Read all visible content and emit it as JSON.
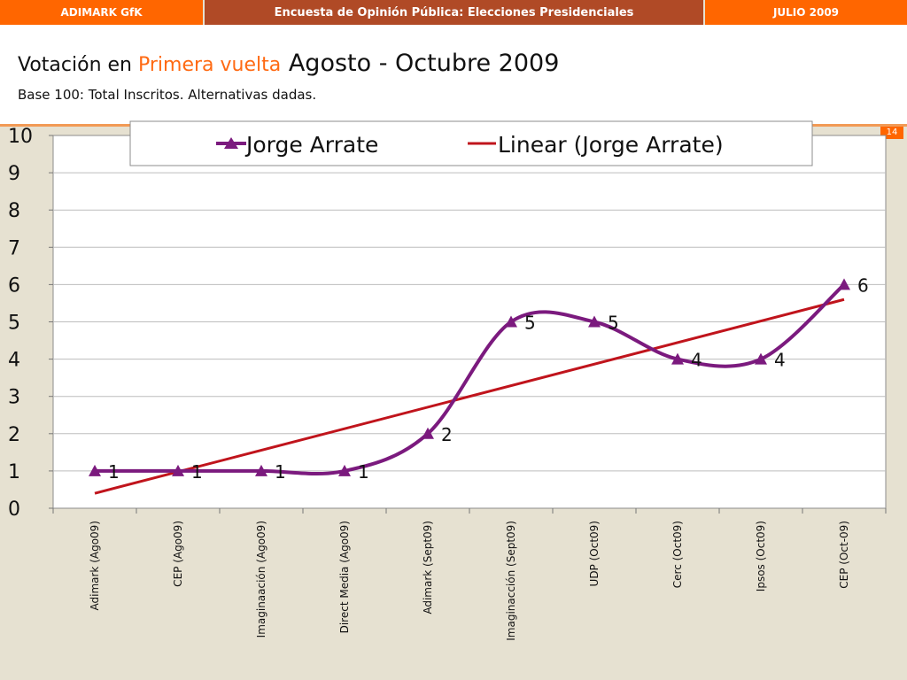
{
  "header": {
    "left": "ADIMARK GfK",
    "center": "Encuesta de Opinión Pública: Elecciones Presidenciales",
    "right": "JULIO 2009"
  },
  "title": {
    "part1": "Votación en ",
    "part2": "Primera vuelta",
    "part3": " Agosto - Octubre 2009"
  },
  "subtitle": "Base 100: Total Inscritos. Alternativas dadas.",
  "page_number": "14",
  "colors": {
    "brand_orange": "#ff6600",
    "header_dark": "#b04a26",
    "series": "#7b1a7e",
    "trend": "#c0141c"
  },
  "chart_data": {
    "type": "line",
    "title": "",
    "xlabel": "",
    "ylabel": "",
    "ylim": [
      0,
      10
    ],
    "yticks": [
      "0",
      "1",
      "2",
      "3",
      "4",
      "5",
      "6",
      "7",
      "8",
      "9",
      "10"
    ],
    "categories": [
      "Adimark (Ago09)",
      "CEP (Ago09)",
      "Imaginaación (Ago09)",
      "Direct Media (Ago09)",
      "Adimark (Sept09)",
      "Imaginacción (Sept09)",
      "UDP (Oct09)",
      "Cerc (Oct09)",
      "Ipsos (Oct09)",
      "CEP (Oct-09)"
    ],
    "series": [
      {
        "name": "Jorge Arrate",
        "values": [
          1,
          1,
          1,
          1,
          2,
          5,
          5,
          4,
          4,
          6
        ],
        "labels": [
          "1",
          "1",
          "1",
          "1",
          "2",
          "5",
          "5",
          "4",
          "4",
          "6"
        ],
        "smooth": true,
        "marker": "triangle"
      }
    ],
    "trendline": {
      "name": "Linear (Jorge Arrate)",
      "start": 0.4,
      "end": 5.6
    },
    "legend": {
      "position": "top"
    },
    "grid": true
  }
}
